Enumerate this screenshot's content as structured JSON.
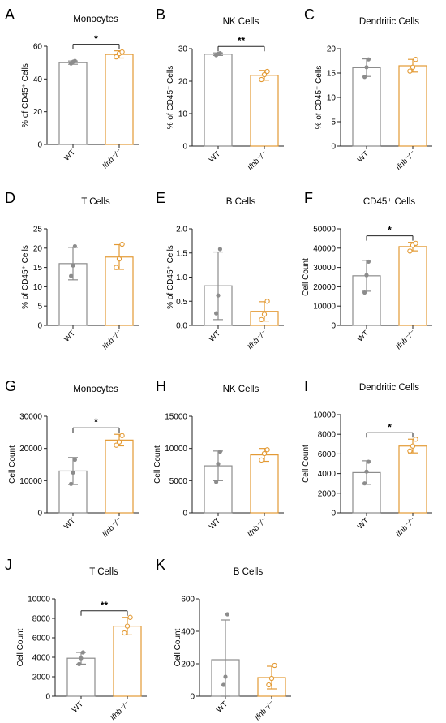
{
  "colors": {
    "wt": "#8c8c8c",
    "ko": "#e39a34",
    "axis": "#222222"
  },
  "chart_data": [
    {
      "type": "bar",
      "letter": "A",
      "title": "Monocytes",
      "ylabel": "% of CD45⁺ Cells",
      "ylim": [
        0,
        60
      ],
      "yticks": [
        "0",
        "20",
        "40",
        "60"
      ],
      "categories": [
        "WT",
        "Ifnb⁻/⁻"
      ],
      "values": [
        50,
        55
      ],
      "errors": [
        1,
        2.2
      ],
      "points": [
        [
          49.5,
          50.5,
          51
        ],
        [
          53.5,
          55.5,
          56.5
        ]
      ],
      "significance": "*"
    },
    {
      "type": "bar",
      "letter": "B",
      "title": "NK Cells",
      "ylabel": "% of CD45⁺ Cells",
      "ylim": [
        0,
        30
      ],
      "yticks": [
        "0",
        "10",
        "20",
        "30"
      ],
      "categories": [
        "WT",
        "Ifnb⁻/⁻"
      ],
      "values": [
        28.3,
        21.8
      ],
      "errors": [
        0.4,
        1.5
      ],
      "points": [
        [
          28.0,
          28.4,
          28.6
        ],
        [
          20.5,
          22.0,
          23.0
        ]
      ],
      "significance": "**"
    },
    {
      "type": "bar",
      "letter": "C",
      "title": "Dendritic Cells",
      "ylabel": "% of CD45⁺ Cells",
      "ylim": [
        0,
        20
      ],
      "yticks": [
        "0",
        "5",
        "10",
        "15",
        "20"
      ],
      "categories": [
        "WT",
        "Ifnb⁻/⁻"
      ],
      "values": [
        16.1,
        16.5
      ],
      "errors": [
        1.8,
        1.3
      ],
      "points": [
        [
          14.2,
          16.2,
          17.8
        ],
        [
          15.4,
          16.2,
          17.8
        ]
      ],
      "significance": ""
    },
    {
      "type": "bar",
      "letter": "D",
      "title": "T Cells",
      "ylabel": "% of CD45⁺ Cells",
      "ylim": [
        0,
        25
      ],
      "yticks": [
        "0",
        "5",
        "10",
        "15",
        "20",
        "25"
      ],
      "categories": [
        "WT",
        "Ifnb⁻/⁻"
      ],
      "values": [
        16,
        17.7
      ],
      "errors": [
        4.2,
        3.2
      ],
      "points": [
        [
          12.8,
          15.5,
          20.5
        ],
        [
          15.0,
          17.2,
          21.0
        ]
      ],
      "significance": ""
    },
    {
      "type": "bar",
      "letter": "E",
      "title": "B Cells",
      "ylabel": "% of CD45⁺ Cells",
      "ylim": [
        0,
        2.0
      ],
      "yticks": [
        "0.0",
        "0.5",
        "1.0",
        "1.5",
        "2.0"
      ],
      "categories": [
        "WT",
        "Ifnb⁻/⁻"
      ],
      "values": [
        0.82,
        0.29
      ],
      "errors": [
        0.7,
        0.2
      ],
      "points": [
        [
          0.25,
          0.62,
          1.58
        ],
        [
          0.12,
          0.23,
          0.5
        ]
      ],
      "significance": ""
    },
    {
      "type": "bar",
      "letter": "F",
      "title": "CD45⁺ Cells",
      "ylabel": "Cell Count",
      "ylim": [
        0,
        50000
      ],
      "yticks": [
        "0",
        "10000",
        "20000",
        "30000",
        "40000",
        "50000"
      ],
      "categories": [
        "WT",
        "Ifnb⁻/⁻"
      ],
      "values": [
        25700,
        40800
      ],
      "errors": [
        8000,
        2200
      ],
      "points": [
        [
          17000,
          26000,
          33000
        ],
        [
          38500,
          41500,
          42500
        ]
      ],
      "significance": "*"
    },
    {
      "type": "bar",
      "letter": "G",
      "title": "Monocytes",
      "ylabel": "Cell Count",
      "ylim": [
        0,
        30000
      ],
      "yticks": [
        "0",
        "10000",
        "20000",
        "30000"
      ],
      "categories": [
        "WT",
        "Ifnb⁻/⁻"
      ],
      "values": [
        13000,
        22600
      ],
      "errors": [
        4200,
        1800
      ],
      "points": [
        [
          9000,
          12500,
          16500
        ],
        [
          21000,
          22000,
          24000
        ]
      ],
      "significance": "*"
    },
    {
      "type": "bar",
      "letter": "H",
      "title": "NK Cells",
      "ylabel": "Cell Count",
      "ylim": [
        0,
        15000
      ],
      "yticks": [
        "0",
        "5000",
        "10000",
        "15000"
      ],
      "categories": [
        "WT",
        "Ifnb⁻/⁻"
      ],
      "values": [
        7300,
        9000
      ],
      "errors": [
        2300,
        1000
      ],
      "points": [
        [
          4800,
          7600,
          9500
        ],
        [
          8200,
          9200,
          9800
        ]
      ],
      "significance": ""
    },
    {
      "type": "bar",
      "letter": "I",
      "title": "Dendritic Cells",
      "ylabel": "Cell Count",
      "ylim": [
        0,
        10000
      ],
      "yticks": [
        "0",
        "2000",
        "4000",
        "6000",
        "8000",
        "10000"
      ],
      "categories": [
        "WT",
        "Ifnb⁻/⁻"
      ],
      "values": [
        4100,
        6800
      ],
      "errors": [
        1200,
        700
      ],
      "points": [
        [
          3000,
          4200,
          5200
        ],
        [
          6300,
          6800,
          7500
        ]
      ],
      "significance": "*"
    },
    {
      "type": "bar",
      "letter": "J",
      "title": "T Cells",
      "ylabel": "Cell Count",
      "ylim": [
        0,
        10000
      ],
      "yticks": [
        "0",
        "2000",
        "4000",
        "6000",
        "8000",
        "10000"
      ],
      "categories": [
        "WT",
        "Ifnb⁻/⁻"
      ],
      "values": [
        3900,
        7200
      ],
      "errors": [
        600,
        900
      ],
      "points": [
        [
          3300,
          3900,
          4500
        ],
        [
          6500,
          7200,
          8100
        ]
      ],
      "significance": "**"
    },
    {
      "type": "bar",
      "letter": "K",
      "title": "B Cells",
      "ylabel": "Cell Count",
      "ylim": [
        0,
        600
      ],
      "yticks": [
        "0",
        "200",
        "400",
        "600"
      ],
      "categories": [
        "WT",
        "Ifnb⁻/⁻"
      ],
      "values": [
        225,
        115
      ],
      "errors": [
        245,
        70
      ],
      "points": [
        [
          70,
          120,
          505
        ],
        [
          70,
          110,
          190
        ]
      ],
      "significance": ""
    }
  ]
}
